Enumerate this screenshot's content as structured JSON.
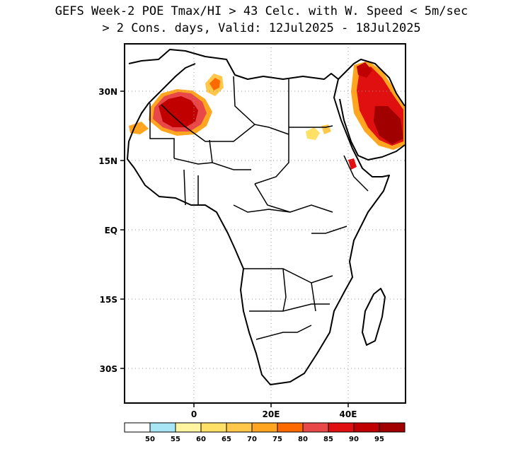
{
  "title": {
    "line1": "GEFS Week-2 POE Tmax/HI > 43 Celc. with W. Speed < 5m/sec",
    "line2": "> 2 Cons. days, Valid: 12Jul2025 - 18Jul2025"
  },
  "axes": {
    "lat_ticks": [
      {
        "label": "30N",
        "value": 30
      },
      {
        "label": "15N",
        "value": 15
      },
      {
        "label": "EQ",
        "value": 0
      },
      {
        "label": "15S",
        "value": -15
      },
      {
        "label": "30S",
        "value": -30
      }
    ],
    "lon_ticks": [
      {
        "label": "0",
        "value": 0
      },
      {
        "label": "20E",
        "value": 20
      },
      {
        "label": "40E",
        "value": 40
      }
    ],
    "lon_range": [
      -18,
      55
    ],
    "lat_range": [
      -37,
      40
    ]
  },
  "colorbar": {
    "colors": [
      "#ffffff",
      "#a8e6f5",
      "#fff4a0",
      "#ffe066",
      "#ffc84a",
      "#ffa520",
      "#ff6a00",
      "#e84848",
      "#e01010",
      "#c00000",
      "#a00000"
    ],
    "labels": [
      "50",
      "55",
      "60",
      "65",
      "70",
      "75",
      "80",
      "85",
      "90",
      "95"
    ]
  },
  "legend_colors": {
    "coast": "#000000",
    "grid": "#999999"
  }
}
